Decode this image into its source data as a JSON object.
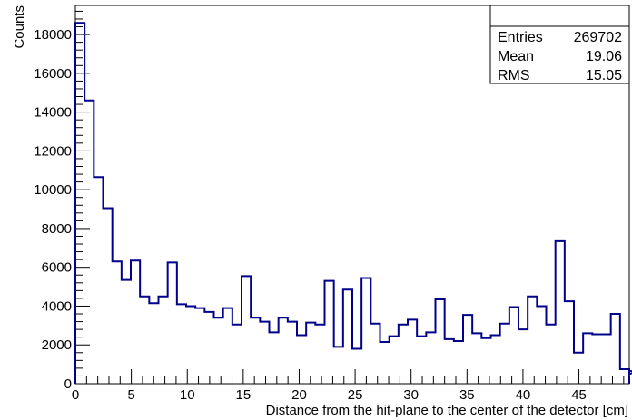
{
  "chart_data": {
    "type": "bar",
    "title": "",
    "xlabel": "Distance from the hit-plane to the center of the detector [cm]",
    "ylabel": "Counts",
    "xlim": [
      0,
      49.5
    ],
    "ylim": [
      0,
      19500
    ],
    "x_ticks": [
      "0",
      "5",
      "10",
      "15",
      "20",
      "25",
      "30",
      "35",
      "40",
      "45"
    ],
    "y_ticks": [
      "0",
      "2000",
      "4000",
      "6000",
      "8000",
      "10000",
      "12000",
      "14000",
      "16000",
      "18000"
    ],
    "bin_width": 0.825,
    "values": [
      18600,
      14600,
      10650,
      9050,
      6300,
      5350,
      6350,
      4500,
      4150,
      4500,
      6250,
      4100,
      4000,
      3900,
      3700,
      3400,
      3900,
      3050,
      5550,
      3400,
      3200,
      2650,
      3400,
      3200,
      2500,
      3150,
      3050,
      5300,
      1900,
      4850,
      1800,
      5450,
      3100,
      2150,
      2450,
      3050,
      3300,
      2450,
      2650,
      4350,
      2300,
      2200,
      3550,
      2600,
      2350,
      2500,
      3100,
      3950,
      2800,
      4500,
      4000,
      3050,
      7350,
      4250,
      1600,
      2600,
      2550,
      2550,
      3600,
      750,
      500,
      650
    ],
    "line_color": "#00008b",
    "stats": [
      {
        "label": "Entries",
        "value": "269702"
      },
      {
        "label": "Mean",
        "value": "19.06"
      },
      {
        "label": "RMS",
        "value": "15.05"
      }
    ]
  }
}
